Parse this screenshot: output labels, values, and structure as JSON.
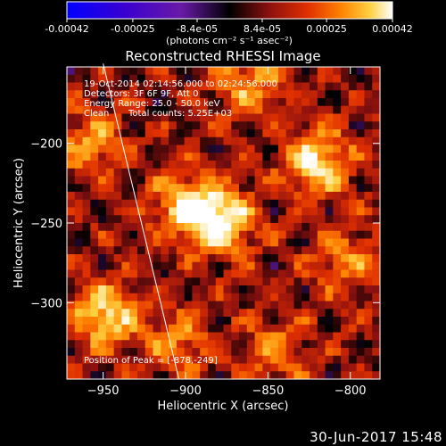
{
  "colorbar": {
    "tick_labels": [
      "-0.00042",
      "-0.00025",
      "-8.4e-05",
      "8.4e-05",
      "0.00025",
      "0.00042"
    ],
    "tick_values": [
      -0.00042,
      -0.00025,
      -8.4e-05,
      8.4e-05,
      0.00025,
      0.00042
    ],
    "range": [
      -0.00042,
      0.00042
    ],
    "units_label": "(photons cm⁻² s⁻¹ asec⁻²)",
    "colormap": [
      "#0000ff",
      "#3a00d0",
      "#6a1aa8",
      "#000000",
      "#8b1010",
      "#e03000",
      "#ff8000",
      "#ffd040",
      "#ffffff"
    ]
  },
  "info": {
    "time": "19-Oct-2014 02:14:56.000 to 02:24:56.000",
    "detectors": "Detectors: 3F 6F 9F, Att 0",
    "energy": "Energy Range: 25.0 - 50.0 keV",
    "method": "Clean",
    "counts": "Total counts: 5.25E+03",
    "peak": "Position of Peak = [-878,-249]"
  },
  "footer": {
    "date": "30-Jun-2017 15:48"
  },
  "chart_data": {
    "type": "heatmap",
    "title": "Reconstructed RHESSI Image",
    "xlabel": "Heliocentric X (arcsec)",
    "ylabel": "Heliocentric Y (arcsec)",
    "xlim": [
      -972,
      -782
    ],
    "ylim": [
      -348,
      -152
    ],
    "x_ticks": [
      -950,
      -900,
      -850,
      -800
    ],
    "y_ticks": [
      -200,
      -250,
      -300
    ],
    "x_tick_labels": [
      "−950",
      "−900",
      "−850",
      "−800"
    ],
    "y_tick_labels": [
      "−200",
      "−250",
      "−300"
    ],
    "peak": {
      "x": -878,
      "y": -249
    },
    "sources": [
      {
        "x": -878,
        "y": -249,
        "intensity": 1.0
      },
      {
        "x": -900,
        "y": -240,
        "intensity": 0.75
      },
      {
        "x": -820,
        "y": -212,
        "intensity": 0.9
      },
      {
        "x": -948,
        "y": -308,
        "intensity": 0.85
      },
      {
        "x": -958,
        "y": -200,
        "intensity": 0.55
      },
      {
        "x": -862,
        "y": -162,
        "intensity": 0.6
      },
      {
        "x": -802,
        "y": -272,
        "intensity": 0.5
      },
      {
        "x": -845,
        "y": -330,
        "intensity": 0.45
      },
      {
        "x": -905,
        "y": -325,
        "intensity": 0.5
      }
    ],
    "limb": [
      [
        -950,
        -150
      ],
      [
        -904,
        -348
      ]
    ]
  }
}
